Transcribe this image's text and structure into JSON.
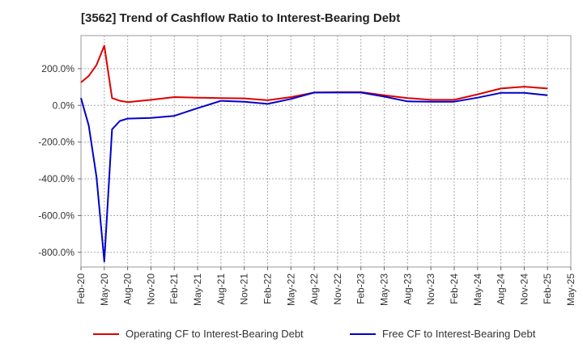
{
  "title": "[3562]  Trend of Cashflow Ratio to Interest-Bearing Debt",
  "chart_data": {
    "type": "line",
    "title": "[3562]  Trend of Cashflow Ratio to Interest-Bearing Debt",
    "xlabel": "",
    "ylabel": "",
    "x_ticks": [
      "Feb-20",
      "May-20",
      "Aug-20",
      "Nov-20",
      "Feb-21",
      "May-21",
      "Aug-21",
      "Nov-21",
      "Feb-22",
      "May-22",
      "Aug-22",
      "Nov-22",
      "Feb-23",
      "May-23",
      "Aug-23",
      "Nov-23",
      "Feb-24",
      "May-24",
      "Aug-24",
      "Nov-24",
      "Feb-25",
      "May-25"
    ],
    "y_ticks": [
      "200.0%",
      "0.0%",
      "-200.0%",
      "-400.0%",
      "-600.0%",
      "-800.0%"
    ],
    "y_tick_values": [
      200,
      0,
      -200,
      -400,
      -600,
      -800
    ],
    "ylim": [
      -880,
      380
    ],
    "grid": true,
    "legend_position": "bottom",
    "series": [
      {
        "name": "Operating CF to Interest-Bearing Debt",
        "color": "#dd0000",
        "x": [
          "2020-02",
          "2020-03",
          "2020-04",
          "2020-05",
          "2020-06",
          "2020-07",
          "2020-08",
          "2020-11",
          "2021-02",
          "2021-05",
          "2021-08",
          "2021-11",
          "2022-02",
          "2022-05",
          "2022-08",
          "2022-11",
          "2023-02",
          "2023-05",
          "2023-08",
          "2023-11",
          "2024-02",
          "2024-05",
          "2024-08",
          "2024-11",
          "2025-02"
        ],
        "values": [
          125,
          160,
          220,
          325,
          40,
          25,
          18,
          30,
          45,
          42,
          40,
          38,
          28,
          45,
          70,
          72,
          72,
          55,
          40,
          30,
          30,
          60,
          92,
          102,
          92
        ]
      },
      {
        "name": "Free CF to Interest-Bearing Debt",
        "color": "#0000cc",
        "x": [
          "2020-02",
          "2020-03",
          "2020-04",
          "2020-05",
          "2020-06",
          "2020-07",
          "2020-08",
          "2020-11",
          "2021-02",
          "2021-05",
          "2021-08",
          "2021-11",
          "2022-02",
          "2022-05",
          "2022-08",
          "2022-11",
          "2023-02",
          "2023-05",
          "2023-08",
          "2023-11",
          "2024-02",
          "2024-05",
          "2024-08",
          "2024-11",
          "2025-02"
        ],
        "values": [
          40,
          -110,
          -390,
          -850,
          -130,
          -85,
          -72,
          -68,
          -57,
          -15,
          25,
          20,
          8,
          35,
          70,
          70,
          70,
          48,
          22,
          20,
          20,
          42,
          68,
          68,
          55
        ]
      }
    ]
  }
}
